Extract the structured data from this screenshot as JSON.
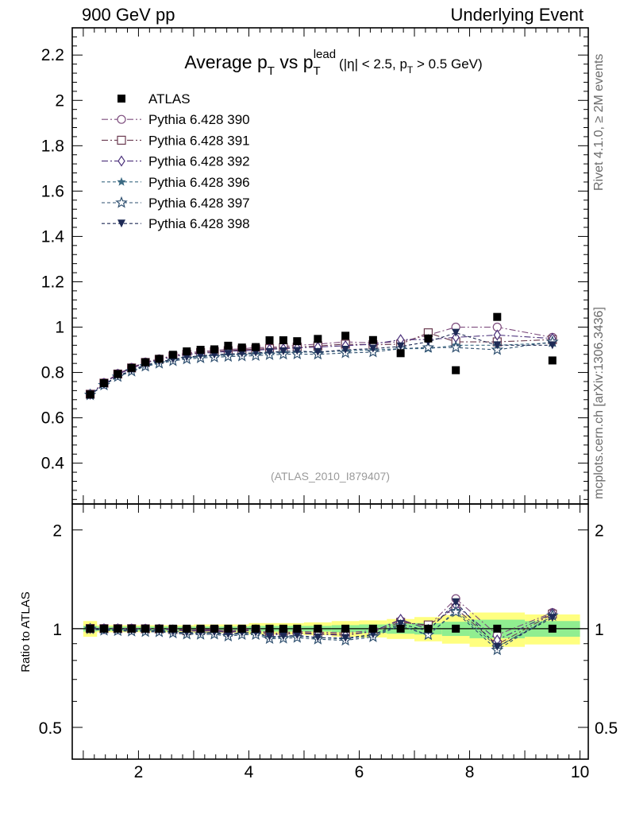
{
  "header": {
    "left": "900 GeV pp",
    "right": "Underlying Event"
  },
  "side_labels": {
    "rivet": "Rivet 4.1.0, ≥ 2M events",
    "mcplots": "mcplots.cern.ch [arXiv:1306.3436]"
  },
  "colors": {
    "band_inner": "#90ee90",
    "band_outer": "#ffff80",
    "atlas": "#000000",
    "s390": "#7e4d7e",
    "s391": "#6a3a4f",
    "s392": "#4a2f7a",
    "s396": "#3b6a83",
    "s397": "#2e4f6f",
    "s398": "#1e2a55"
  },
  "chart_data": {
    "type": "scatter",
    "title": {
      "main": "Average p",
      "sub1": "T",
      "mid": " vs p",
      "sub2": "T",
      "sup2": "lead",
      "cut": "(|η| < 2.5, p",
      "cut_sub": "T",
      "cut_end": " > 0.5 GeV)"
    },
    "watermark": "(ATLAS_2010_I879407)",
    "xlim": [
      0.8,
      10.15
    ],
    "ylim": [
      0.22,
      2.32
    ],
    "ratio_ylim": [
      0.4,
      2.4
    ],
    "ratio_ylabel": "Ratio to ATLAS",
    "xticks": [
      2,
      4,
      6,
      8,
      10
    ],
    "yticks": [
      0.4,
      0.6,
      0.8,
      1,
      1.2,
      1.4,
      1.6,
      1.8,
      2,
      2.2
    ],
    "ytick_labels": [
      "0.4",
      "0.6",
      "0.8",
      "1",
      "1.2",
      "1.4",
      "1.6",
      "1.8",
      "2",
      "2.2"
    ],
    "ratio_yticks": [
      0.5,
      1,
      2
    ],
    "ratio_ytick_labels": [
      "0.5",
      "1",
      "2"
    ],
    "x": [
      1.125,
      1.375,
      1.625,
      1.875,
      2.125,
      2.375,
      2.625,
      2.875,
      3.125,
      3.375,
      3.625,
      3.875,
      4.125,
      4.375,
      4.625,
      4.875,
      5.25,
      5.75,
      6.25,
      6.75,
      7.25,
      7.75,
      8.5,
      9.5
    ],
    "band": [
      {
        "x0": 1.0,
        "x1": 1.25,
        "inner": 0.02,
        "outer": 0.055
      },
      {
        "x0": 1.25,
        "x1": 3.0,
        "inner": 0.015,
        "outer": 0.025
      },
      {
        "x0": 3.0,
        "x1": 4.0,
        "inner": 0.015,
        "outer": 0.03
      },
      {
        "x0": 4.0,
        "x1": 5.0,
        "inner": 0.02,
        "outer": 0.04
      },
      {
        "x0": 5.0,
        "x1": 5.5,
        "inner": 0.02,
        "outer": 0.045
      },
      {
        "x0": 5.5,
        "x1": 6.0,
        "inner": 0.025,
        "outer": 0.055
      },
      {
        "x0": 6.0,
        "x1": 6.5,
        "inner": 0.03,
        "outer": 0.06
      },
      {
        "x0": 6.5,
        "x1": 7.0,
        "inner": 0.035,
        "outer": 0.07
      },
      {
        "x0": 7.0,
        "x1": 7.5,
        "inner": 0.04,
        "outer": 0.085
      },
      {
        "x0": 7.5,
        "x1": 8.0,
        "inner": 0.05,
        "outer": 0.1
      },
      {
        "x0": 8.0,
        "x1": 9.0,
        "inner": 0.065,
        "outer": 0.12
      },
      {
        "x0": 9.0,
        "x1": 10.0,
        "inner": 0.055,
        "outer": 0.105
      }
    ],
    "series": [
      {
        "name": "ATLAS",
        "marker": "square",
        "dash": "",
        "color_key": "atlas",
        "values": [
          0.703,
          0.753,
          0.793,
          0.82,
          0.845,
          0.86,
          0.878,
          0.893,
          0.9,
          0.902,
          0.918,
          0.91,
          0.912,
          0.942,
          0.942,
          0.938,
          0.948,
          0.962,
          0.943,
          0.885,
          0.95,
          0.81,
          1.045,
          0.853
        ]
      },
      {
        "name": "Pythia 6.428 390",
        "marker": "circle",
        "dash": "8 3 2 3",
        "color_key": "s390",
        "values": [
          0.705,
          0.755,
          0.795,
          0.822,
          0.846,
          0.86,
          0.875,
          0.885,
          0.893,
          0.897,
          0.902,
          0.904,
          0.91,
          0.91,
          0.915,
          0.92,
          0.925,
          0.935,
          0.93,
          0.935,
          0.965,
          1.0,
          1.0,
          0.955
        ]
      },
      {
        "name": "Pythia 6.428 391",
        "marker": "square-open",
        "dash": "8 3 2 3",
        "color_key": "s391",
        "values": [
          0.704,
          0.753,
          0.793,
          0.82,
          0.844,
          0.858,
          0.872,
          0.88,
          0.888,
          0.892,
          0.896,
          0.9,
          0.903,
          0.905,
          0.91,
          0.912,
          0.917,
          0.925,
          0.922,
          0.925,
          0.975,
          0.935,
          0.935,
          0.945
        ]
      },
      {
        "name": "Pythia 6.428 392",
        "marker": "diamond",
        "dash": "8 3 2 3",
        "color_key": "s392",
        "values": [
          0.704,
          0.752,
          0.792,
          0.818,
          0.842,
          0.856,
          0.87,
          0.878,
          0.885,
          0.888,
          0.893,
          0.896,
          0.898,
          0.902,
          0.905,
          0.908,
          0.912,
          0.918,
          0.925,
          0.945,
          0.945,
          0.955,
          0.965,
          0.95
        ]
      },
      {
        "name": "Pythia 6.428 396",
        "marker": "star",
        "dash": "4 3",
        "color_key": "s396",
        "values": [
          0.702,
          0.746,
          0.783,
          0.808,
          0.83,
          0.844,
          0.855,
          0.864,
          0.87,
          0.874,
          0.877,
          0.88,
          0.882,
          0.886,
          0.888,
          0.89,
          0.89,
          0.895,
          0.9,
          0.905,
          0.905,
          0.92,
          0.92,
          0.93
        ]
      },
      {
        "name": "Pythia 6.428 397",
        "marker": "star-open",
        "dash": "4 3",
        "color_key": "s397",
        "values": [
          0.701,
          0.744,
          0.781,
          0.805,
          0.827,
          0.84,
          0.851,
          0.859,
          0.864,
          0.867,
          0.87,
          0.872,
          0.874,
          0.878,
          0.88,
          0.881,
          0.88,
          0.886,
          0.89,
          0.905,
          0.91,
          0.91,
          0.9,
          0.935
        ]
      },
      {
        "name": "Pythia 6.428 398",
        "marker": "triangle-down",
        "dash": "4 3",
        "color_key": "s398",
        "values": [
          0.702,
          0.747,
          0.785,
          0.81,
          0.833,
          0.847,
          0.858,
          0.867,
          0.874,
          0.878,
          0.882,
          0.884,
          0.887,
          0.89,
          0.893,
          0.895,
          0.89,
          0.9,
          0.905,
          0.915,
          0.935,
          0.975,
          0.92,
          0.92
        ]
      }
    ]
  }
}
